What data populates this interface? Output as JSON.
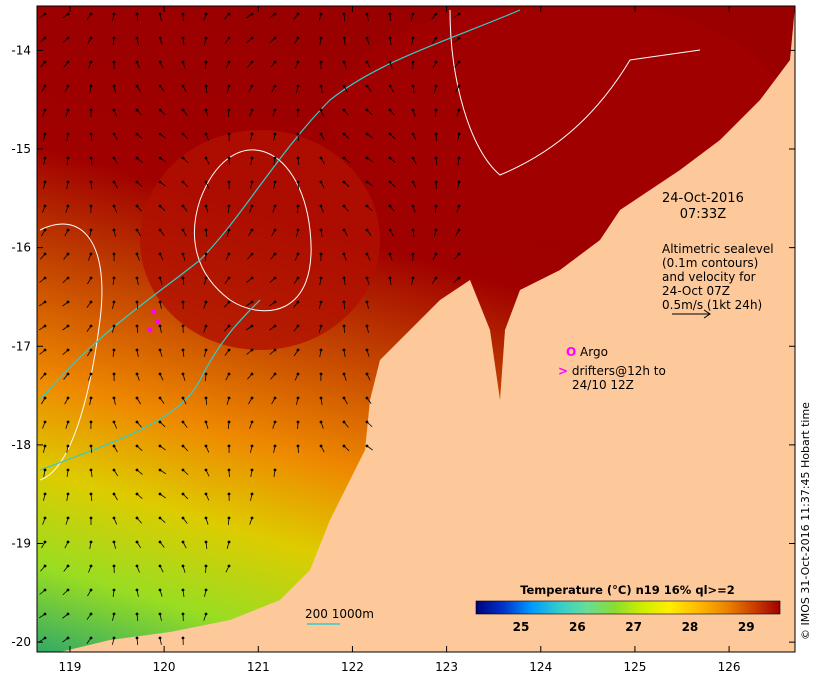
{
  "map": {
    "lon_range": [
      118.65,
      126.7
    ],
    "lat_range": [
      -20.1,
      -13.55
    ],
    "lon_ticks": [
      "119",
      "120",
      "121",
      "122",
      "123",
      "124",
      "125",
      "126"
    ],
    "lat_ticks": [
      "-14",
      "-15",
      "-16",
      "-17",
      "-18",
      "-19",
      "-20"
    ],
    "land_color": "#fdc89a",
    "sea_warm_color": "#a00000"
  },
  "annotation": {
    "date": "24-Oct-2016",
    "time": "07:33Z",
    "altimetry_lines": [
      "Altimetric sealevel",
      "(0.1m contours)",
      "and velocity for",
      "24-Oct 07Z",
      "0.5m/s (1kt 24h)"
    ]
  },
  "legend": {
    "argo_symbol": "O",
    "argo_label": "Argo",
    "drifter_symbol": ">",
    "drifter_lines": [
      "drifters@12h to",
      "24/10 12Z"
    ],
    "depth_label": "200  1000m"
  },
  "colorbar": {
    "title": "Temperature (°C) n19 16% ql>=2",
    "ticks": [
      "25",
      "26",
      "27",
      "28",
      "29"
    ],
    "range": [
      24.2,
      29.6
    ],
    "colors": [
      "#00007a",
      "#0033cc",
      "#0099ff",
      "#33cccc",
      "#66dd99",
      "#88dd33",
      "#ccee00",
      "#ffee00",
      "#ffbb00",
      "#ee8800",
      "#cc4400",
      "#a00000"
    ]
  },
  "credit": "© IMOS 31-Oct-2016 11:37:45 Hobart time"
}
